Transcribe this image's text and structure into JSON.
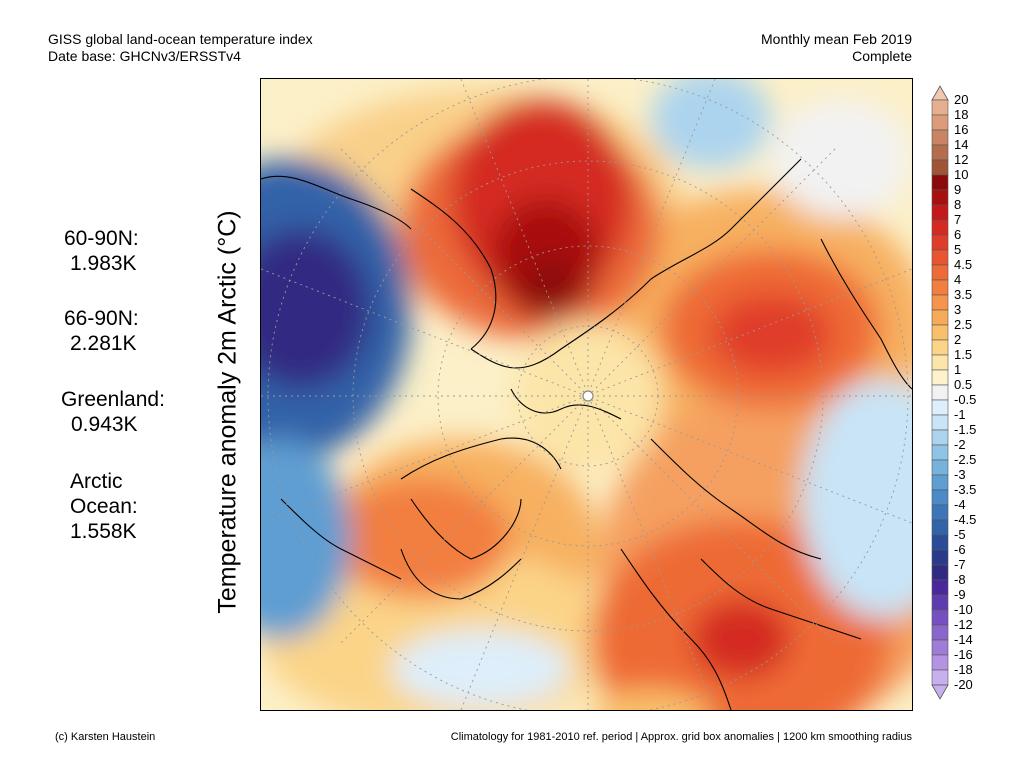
{
  "header": {
    "title": "GISS global land-ocean temperature index",
    "subtitle": "Date base: GHCNv3/ERSSTv4",
    "period": "Monthly mean Feb 2019",
    "status": "Complete"
  },
  "axis_label": "Temperature anomaly 2m Arctic (°C)",
  "stats": [
    {
      "lines": [
        "60-90N:",
        "1.983K"
      ]
    },
    {
      "lines": [
        "66-90N:",
        "2.281K"
      ]
    },
    {
      "lines": [
        "Greenland:",
        "0.943K"
      ]
    },
    {
      "lines": [
        "Arctic",
        "Ocean:",
        "1.558K"
      ]
    }
  ],
  "colorbar": {
    "labels": [
      "20",
      "18",
      "16",
      "14",
      "12",
      "10",
      "9",
      "8",
      "7",
      "6",
      "5",
      "4.5",
      "4",
      "3.5",
      "3",
      "2.5",
      "2",
      "1.5",
      "1",
      "0.5",
      "-0.5",
      "-1",
      "-1.5",
      "-2",
      "-2.5",
      "-3",
      "-3.5",
      "-4",
      "-4.5",
      "-5",
      "-6",
      "-7",
      "-8",
      "-9",
      "-10",
      "-12",
      "-14",
      "-16",
      "-18",
      "-20"
    ],
    "colors": [
      "#f0c8b0",
      "#e6b090",
      "#dc9c7c",
      "#c88464",
      "#b46c4c",
      "#a05436",
      "#8c0a0a",
      "#a80f0f",
      "#c4181a",
      "#d42a22",
      "#e03c2a",
      "#e85530",
      "#ee6a36",
      "#f27e40",
      "#f5944a",
      "#f7aa58",
      "#f9c06c",
      "#fbd488",
      "#fce5a8",
      "#fcf2cc",
      "#f2f2f2",
      "#deeefa",
      "#c8e4f6",
      "#acd4ee",
      "#90c4e6",
      "#76b2dc",
      "#5e9ed2",
      "#4a8ac6",
      "#3c76b8",
      "#3262a8",
      "#2a4c98",
      "#2a3a8a",
      "#302a82",
      "#48289a",
      "#5e3cae",
      "#7650c0",
      "#8a66cc",
      "#9e7cd8",
      "#b494e2",
      "#c8b0ee"
    ]
  },
  "footer": {
    "credit": "(c) Karsten Haustein",
    "note": "Climatology for 1981-2010 ref. period | Approx. grid box anomalies | 1200 km smoothing radius"
  }
}
